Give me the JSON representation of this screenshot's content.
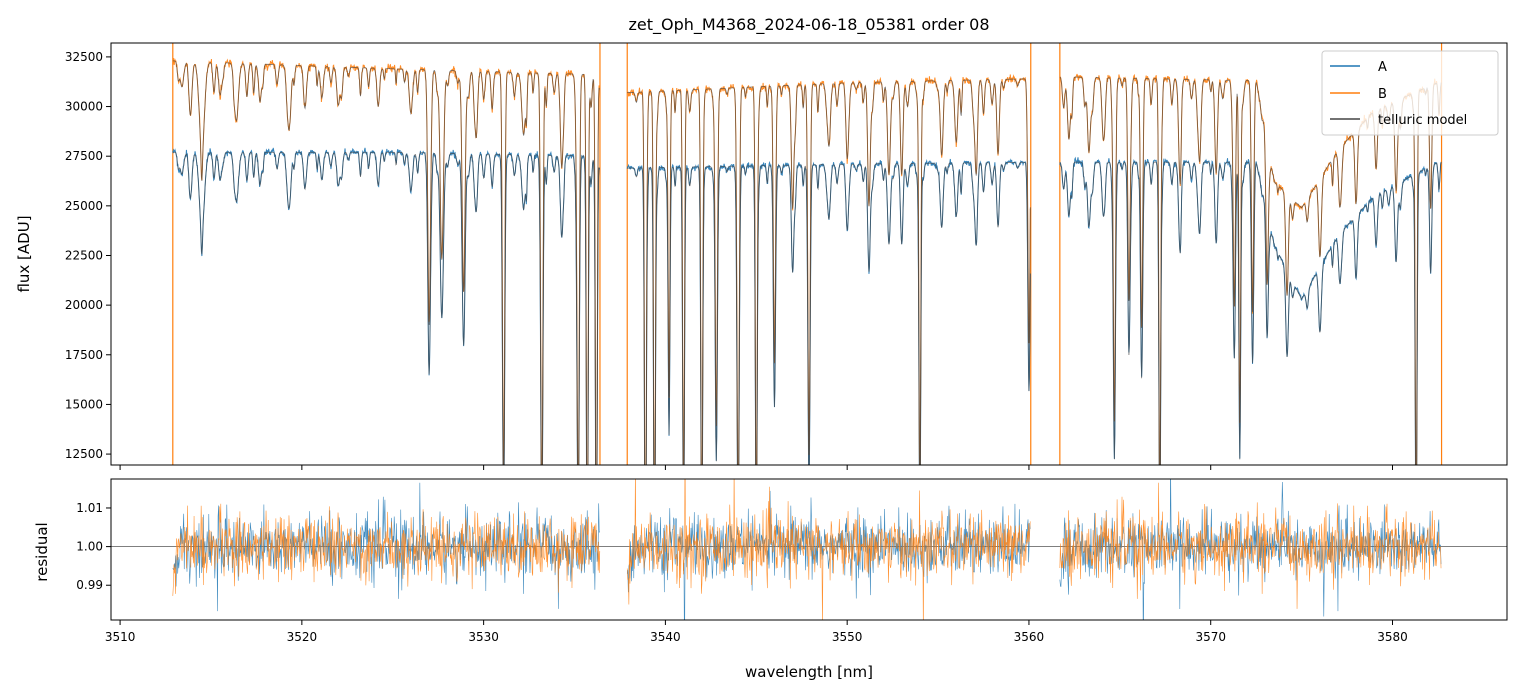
{
  "chart_data": [
    {
      "type": "line",
      "panel": "main",
      "title": "zet_Oph_M4368_2024-06-18_05381  order 08",
      "xlabel": "",
      "ylabel": "flux [ADU]",
      "xlim": [
        3509.5,
        3586.3
      ],
      "ylim": [
        11950,
        33200
      ],
      "xticks": [
        3510,
        3520,
        3530,
        3540,
        3550,
        3560,
        3570,
        3580
      ],
      "yticks": [
        12500,
        15000,
        17500,
        20000,
        22500,
        25000,
        27500,
        30000,
        32500
      ],
      "ytick_labels": [
        "12500",
        "15000",
        "17500",
        "20000",
        "22500",
        "25000",
        "27500",
        "30000",
        "32500"
      ],
      "segments": [
        [
          3512.9,
          3536.4
        ],
        [
          3537.9,
          3560.1
        ],
        [
          3561.7,
          3582.7
        ]
      ],
      "spikes": [
        3512.9,
        3536.4,
        3537.9,
        3560.1,
        3561.7,
        3582.7
      ],
      "legend": {
        "placement": "upper right",
        "entries": [
          "A",
          "B",
          "telluric model"
        ]
      },
      "series": [
        {
          "name": "A",
          "color": "#1f77b4",
          "continuum": [
            [
              3512.9,
              27700
            ],
            [
              3525,
              27700
            ],
            [
              3536.4,
              27500
            ],
            [
              3537.9,
              26900
            ],
            [
              3550,
              27100
            ],
            [
              3560.1,
              27200
            ],
            [
              3561.7,
              27200
            ],
            [
              3572.5,
              27200
            ],
            [
              3573.5,
              23000
            ],
            [
              3575,
              20300
            ],
            [
              3577,
              23500
            ],
            [
              3579,
              25500
            ],
            [
              3582.7,
              27300
            ]
          ]
        },
        {
          "name": "B",
          "color": "#ff7f0e",
          "continuum": [
            [
              3512.9,
              32300
            ],
            [
              3525,
              31900
            ],
            [
              3536.4,
              31600
            ],
            [
              3537.9,
              30700
            ],
            [
              3550,
              31200
            ],
            [
              3560.1,
              31400
            ],
            [
              3561.7,
              31500
            ],
            [
              3572.5,
              31300
            ],
            [
              3573.5,
              26200
            ],
            [
              3575,
              24900
            ],
            [
              3577,
              27800
            ],
            [
              3579,
              29800
            ],
            [
              3582.7,
              31300
            ]
          ]
        },
        {
          "name": "telluric model",
          "color": "#444444"
        }
      ],
      "absorption_lines": [
        [
          3513.4,
          0.1,
          0.04
        ],
        [
          3513.9,
          0.08,
          0.05
        ],
        [
          3514.5,
          0.14,
          0.14
        ],
        [
          3515.5,
          0.08,
          0.05
        ],
        [
          3516.4,
          0.11,
          0.09
        ],
        [
          3517.7,
          0.08,
          0.06
        ],
        [
          3519.3,
          0.1,
          0.1
        ],
        [
          3520.2,
          0.08,
          0.04
        ],
        [
          3521.1,
          0.08,
          0.05
        ],
        [
          3522.0,
          0.08,
          0.06
        ],
        [
          3524.2,
          0.08,
          0.03
        ],
        [
          3526.0,
          0.09,
          0.07
        ],
        [
          3527.0,
          0.07,
          0.4
        ],
        [
          3527.7,
          0.09,
          0.3
        ],
        [
          3528.9,
          0.08,
          0.35
        ],
        [
          3529.6,
          0.07,
          0.1
        ],
        [
          3531.1,
          0.06,
          0.65
        ],
        [
          3532.2,
          0.1,
          0.1
        ],
        [
          3533.2,
          0.06,
          0.7
        ],
        [
          3534.3,
          0.08,
          0.15
        ],
        [
          3535.2,
          0.06,
          0.7
        ],
        [
          3535.7,
          0.05,
          0.8
        ],
        [
          3536.2,
          0.05,
          0.8
        ],
        [
          3538.9,
          0.05,
          0.85
        ],
        [
          3539.4,
          0.05,
          0.8
        ],
        [
          3540.2,
          0.05,
          0.5
        ],
        [
          3541.0,
          0.05,
          0.7
        ],
        [
          3542.0,
          0.05,
          0.75
        ],
        [
          3542.8,
          0.06,
          0.55
        ],
        [
          3544.0,
          0.06,
          0.7
        ],
        [
          3545.0,
          0.05,
          0.72
        ],
        [
          3546.0,
          0.06,
          0.45
        ],
        [
          3547.0,
          0.07,
          0.2
        ],
        [
          3547.9,
          0.06,
          0.6
        ],
        [
          3549.0,
          0.08,
          0.1
        ],
        [
          3550.0,
          0.07,
          0.12
        ],
        [
          3551.2,
          0.07,
          0.2
        ],
        [
          3552.3,
          0.08,
          0.15
        ],
        [
          3553.0,
          0.07,
          0.15
        ],
        [
          3554.0,
          0.05,
          0.68
        ],
        [
          3555.2,
          0.08,
          0.12
        ],
        [
          3556.0,
          0.08,
          0.1
        ],
        [
          3557.1,
          0.07,
          0.15
        ],
        [
          3558.3,
          0.07,
          0.12
        ],
        [
          3560.0,
          0.06,
          0.4
        ],
        [
          3562.2,
          0.08,
          0.1
        ],
        [
          3563.3,
          0.08,
          0.12
        ],
        [
          3564.1,
          0.08,
          0.1
        ],
        [
          3564.7,
          0.06,
          0.55
        ],
        [
          3565.5,
          0.06,
          0.35
        ],
        [
          3566.2,
          0.06,
          0.4
        ],
        [
          3567.2,
          0.05,
          0.7
        ],
        [
          3568.3,
          0.07,
          0.15
        ],
        [
          3569.4,
          0.07,
          0.12
        ],
        [
          3570.3,
          0.07,
          0.15
        ],
        [
          3571.3,
          0.06,
          0.35
        ],
        [
          3571.6,
          0.05,
          0.55
        ],
        [
          3572.3,
          0.06,
          0.35
        ],
        [
          3573.1,
          0.06,
          0.25
        ],
        [
          3574.2,
          0.07,
          0.2
        ],
        [
          3576.0,
          0.07,
          0.12
        ],
        [
          3577.1,
          0.07,
          0.1
        ],
        [
          3578.0,
          0.07,
          0.12
        ],
        [
          3579.1,
          0.07,
          0.1
        ],
        [
          3580.2,
          0.07,
          0.15
        ],
        [
          3581.3,
          0.05,
          0.72
        ],
        [
          3582.1,
          0.06,
          0.2
        ]
      ]
    },
    {
      "type": "line",
      "panel": "residual",
      "xlabel": "wavelength [nm]",
      "ylabel": "residual",
      "xlim": [
        3509.5,
        3586.3
      ],
      "ylim": [
        0.981,
        1.0175
      ],
      "xticks": [
        3510,
        3520,
        3530,
        3540,
        3550,
        3560,
        3570,
        3580
      ],
      "xtick_labels": [
        "3510",
        "3520",
        "3530",
        "3540",
        "3550",
        "3560",
        "3570",
        "3580"
      ],
      "yticks": [
        0.99,
        1.0,
        1.01
      ],
      "ytick_labels": [
        "0.99",
        "1.00",
        "1.01"
      ],
      "reference_line": 1.0,
      "series": [
        {
          "name": "A",
          "color": "#1f77b4",
          "noise_sigma": 0.0045
        },
        {
          "name": "B",
          "color": "#ff7f0e",
          "noise_sigma": 0.0045
        }
      ]
    }
  ]
}
